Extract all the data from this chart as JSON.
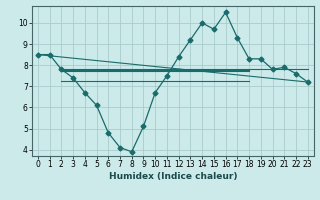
{
  "xlabel": "Humidex (Indice chaleur)",
  "bg_color": "#cceaea",
  "grid_color": "#aacccc",
  "line_color": "#1a6b6b",
  "xlim": [
    -0.5,
    23.5
  ],
  "ylim": [
    3.7,
    10.8
  ],
  "yticks": [
    4,
    5,
    6,
    7,
    8,
    9,
    10
  ],
  "xticks": [
    0,
    1,
    2,
    3,
    4,
    5,
    6,
    7,
    8,
    9,
    10,
    11,
    12,
    13,
    14,
    15,
    16,
    17,
    18,
    19,
    20,
    21,
    22,
    23
  ],
  "series_main": {
    "x": [
      0,
      1,
      2,
      3,
      4,
      5,
      6,
      7,
      8,
      9,
      10,
      11,
      12,
      13,
      14,
      15,
      16,
      17,
      18,
      19,
      20,
      21,
      22,
      23
    ],
    "y": [
      8.5,
      8.5,
      7.8,
      7.4,
      6.7,
      6.1,
      4.8,
      4.1,
      3.9,
      5.1,
      6.7,
      7.5,
      8.4,
      9.2,
      10.0,
      9.7,
      10.5,
      9.3,
      8.3,
      8.3,
      7.8,
      7.9,
      7.6,
      7.2
    ]
  },
  "series_flat": [
    {
      "x": [
        2,
        23
      ],
      "y": [
        7.8,
        7.8
      ]
    },
    {
      "x": [
        2,
        18
      ],
      "y": [
        7.75,
        7.75
      ]
    },
    {
      "x": [
        2,
        18
      ],
      "y": [
        7.7,
        7.7
      ]
    },
    {
      "x": [
        2,
        18
      ],
      "y": [
        7.25,
        7.25
      ]
    }
  ],
  "series_diagonal": [
    {
      "x": [
        0,
        23
      ],
      "y": [
        8.5,
        7.2
      ]
    }
  ],
  "tick_fontsize": 5.5,
  "axis_fontsize": 6.5
}
